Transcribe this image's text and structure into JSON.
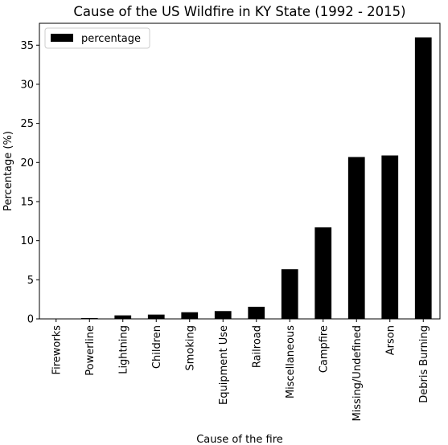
{
  "chart_data": {
    "type": "bar",
    "title": "Cause of the US Wildfire in KY State (1992 - 2015)",
    "xlabel": "Cause of the fire",
    "ylabel": "Percentage (%)",
    "categories": [
      "Fireworks",
      "Powerline",
      "Lightning",
      "Children",
      "Smoking",
      "Equipment Use",
      "Railroad",
      "Miscellaneous",
      "Campfire",
      "Missing/Undefined",
      "Arson",
      "Debris Burning"
    ],
    "series": [
      {
        "name": "percentage",
        "values": [
          0.05,
          0.1,
          0.45,
          0.55,
          0.85,
          1.0,
          1.55,
          6.35,
          11.7,
          20.7,
          20.9,
          36.0
        ],
        "color": "#000000"
      }
    ],
    "yticks": [
      0,
      5,
      10,
      15,
      20,
      25,
      30,
      35
    ],
    "ylim": [
      0,
      37.8
    ],
    "legend": "top-left",
    "grid": false
  }
}
